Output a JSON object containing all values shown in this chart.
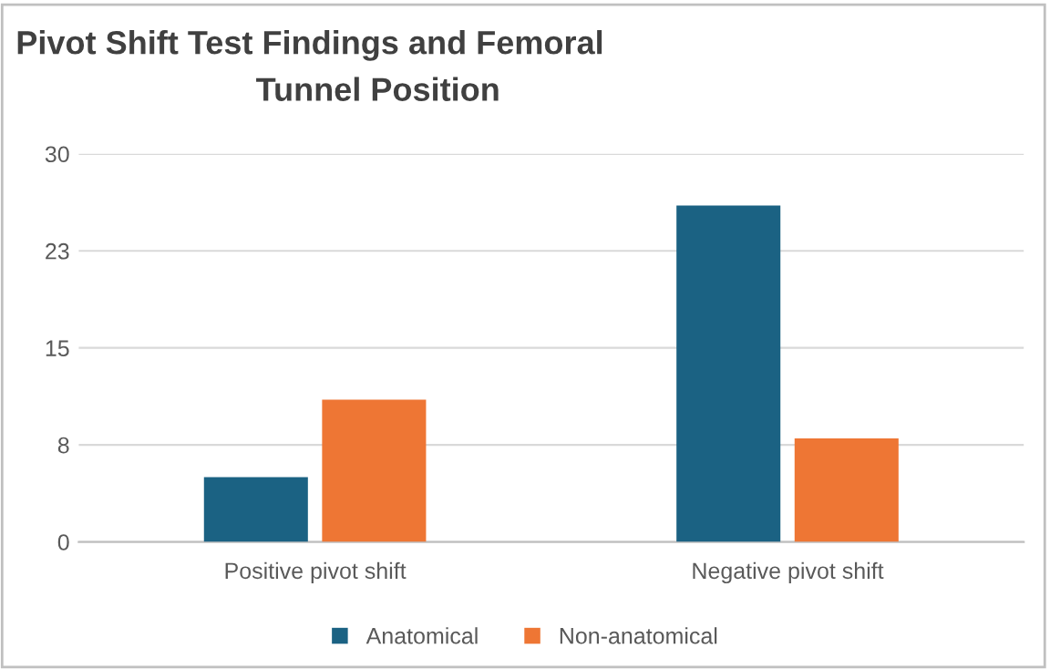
{
  "chart_data": {
    "type": "bar",
    "title": "Pivot Shift Test Findings and Femoral\nTunnel Position",
    "categories": [
      "Positive pivot shift",
      "Negative pivot shift"
    ],
    "series": [
      {
        "name": "Anatomical",
        "color": "#1b6283",
        "values": [
          5,
          26
        ]
      },
      {
        "name": "Non-anatomical",
        "color": "#ee7634",
        "values": [
          11,
          8
        ]
      }
    ],
    "ylim": [
      0,
      30
    ],
    "yticks": [
      0,
      {
        "value": 7.5,
        "label": "8"
      },
      15,
      {
        "value": 22.5,
        "label": "23"
      },
      30
    ],
    "grid": "y",
    "legend": "bottom"
  }
}
